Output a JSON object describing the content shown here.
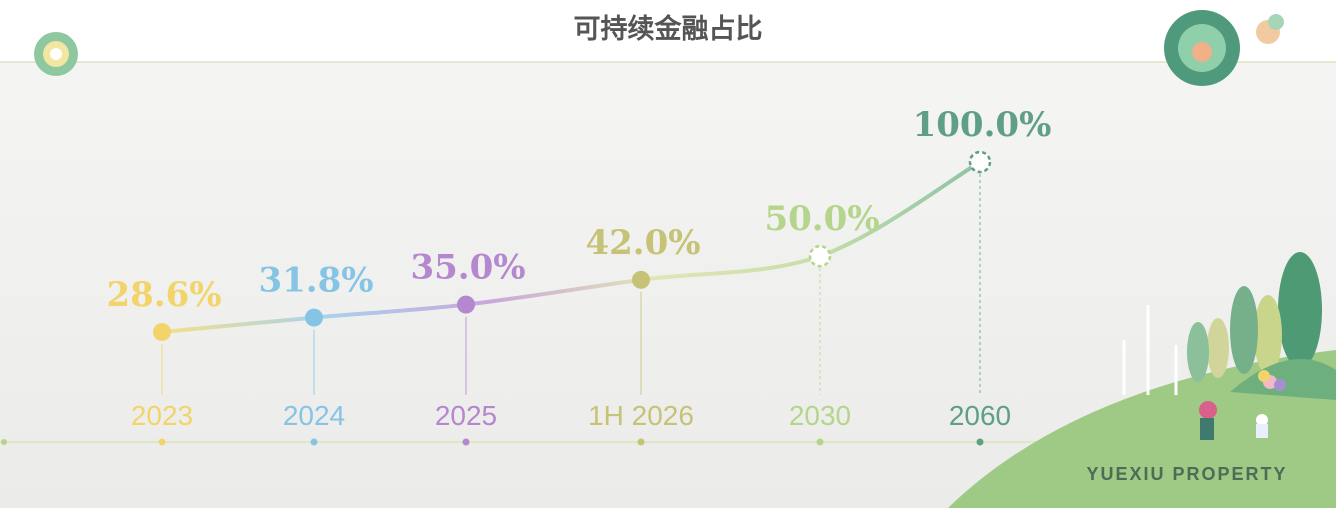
{
  "chart_data": {
    "type": "line",
    "title": "可持续金融占比",
    "categories": [
      "2023",
      "2024",
      "2025",
      "1H 2026",
      "2030",
      "2060"
    ],
    "series": [
      {
        "values": [
          28.6,
          31.8,
          35.0,
          42.0,
          50.0,
          100.0
        ],
        "value_labels": [
          "28.6%",
          "31.8%",
          "35.0%",
          "42.0%",
          "50.0%",
          "100.0%"
        ]
      }
    ],
    "colors": [
      "#f3d46a",
      "#86c4e6",
      "#b487cf",
      "#c6c276",
      "#b5d58c",
      "#5f9f86"
    ],
    "projected": [
      false,
      false,
      false,
      false,
      true,
      true
    ]
  },
  "brand": "YUEXIU PROPERTY"
}
